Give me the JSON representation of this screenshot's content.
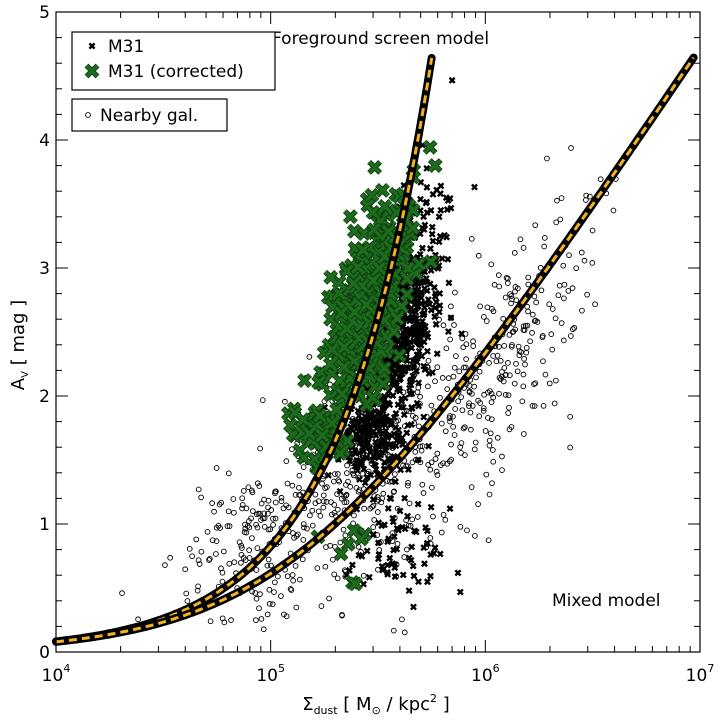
{
  "chart_data": {
    "type": "scatter",
    "title": "",
    "xlabel": {
      "symbol": "Σ",
      "sub": "dust",
      "unit_pre": " [ M",
      "unit_sym": "⊙",
      "unit_post": " / kpc",
      "unit_sup": "2",
      "unit_end": " ]"
    },
    "ylabel": {
      "symbol": "A",
      "sub": "V",
      "unit": " [ mag ]"
    },
    "xscale": "log",
    "xlim": [
      10000,
      10000000
    ],
    "ylim": [
      0,
      5
    ],
    "x_tick_labels": [
      {
        "value": 10000,
        "base": "10",
        "exp": "4"
      },
      {
        "value": 100000,
        "base": "10",
        "exp": "5"
      },
      {
        "value": 1000000,
        "base": "10",
        "exp": "6"
      },
      {
        "value": 10000000,
        "base": "10",
        "exp": "7"
      }
    ],
    "y_ticks": [
      0,
      1,
      2,
      3,
      4,
      5
    ],
    "y_tick_labels": [
      "0",
      "1",
      "2",
      "3",
      "4",
      "5"
    ],
    "legend": {
      "placement": "top-left",
      "entries": [
        {
          "label": "M31",
          "marker": "x-small",
          "color": "#000000"
        },
        {
          "label": "M31 (corrected)",
          "marker": "x-large",
          "color": "#1d6b1d"
        },
        {
          "label": "Nearby gal.",
          "marker": "circle",
          "color": "#000000"
        }
      ]
    },
    "curves": [
      {
        "name": "Foreground screen model",
        "label": "Foreground screen model",
        "model": "screen",
        "k": 7.6e-06
      },
      {
        "name": "Mixed model",
        "label": "Mixed model",
        "model": "mixed",
        "k": 7.6e-06
      }
    ],
    "series": [
      {
        "name": "Nearby gal.",
        "marker": "circle",
        "clusters": [
          {
            "lgx_center": 5.35,
            "lgx_sd": 0.36,
            "y_intercept": -4.4,
            "y_slope": 1.06,
            "y_sd": 0.45,
            "count": 520
          },
          {
            "lgx_center": 4.85,
            "lgx_sd": 0.2,
            "y_intercept": -2.9,
            "y_slope": 0.8,
            "y_sd": 0.17,
            "count": 50
          },
          {
            "lgx_center": 6.1,
            "lgx_sd": 0.2,
            "y_intercept": -9.2,
            "y_slope": 1.9,
            "y_sd": 0.4,
            "count": 230
          }
        ]
      },
      {
        "name": "M31",
        "marker": "x-small",
        "clusters": [
          {
            "lgx_center": 5.62,
            "lgx_sd": 0.1,
            "y_intercept": -13.7,
            "y_slope": 2.9,
            "y_sd": 0.38,
            "count": 640
          },
          {
            "lgx_center": 5.47,
            "lgx_sd": 0.08,
            "y_intercept": 1.7,
            "y_slope": 0.0,
            "y_sd": 0.15,
            "count": 180
          },
          {
            "lgx_center": 5.6,
            "lgx_sd": 0.13,
            "y_intercept": 0.75,
            "y_slope": 0.0,
            "y_sd": 0.18,
            "count": 70
          }
        ]
      },
      {
        "name": "M31 (corrected)",
        "marker": "x-large",
        "clusters": [
          {
            "lgx_center": 5.45,
            "lgx_sd": 0.1,
            "y_intercept": -12.8,
            "y_slope": 2.85,
            "y_sd": 0.33,
            "count": 360
          },
          {
            "lgx_center": 5.22,
            "lgx_sd": 0.06,
            "y_intercept": 1.7,
            "y_slope": 0.0,
            "y_sd": 0.1,
            "count": 90
          },
          {
            "lgx_center": 5.35,
            "lgx_sd": 0.1,
            "y_intercept": 0.7,
            "y_slope": 0.0,
            "y_sd": 0.2,
            "count": 8
          }
        ]
      }
    ]
  }
}
